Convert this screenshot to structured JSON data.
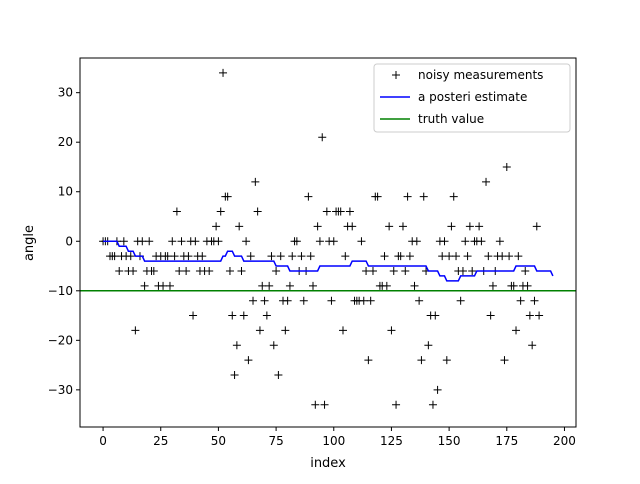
{
  "chart_data": {
    "type": "line",
    "title": "",
    "xlabel": "index",
    "ylabel": "angle",
    "xlim": [
      -10,
      205
    ],
    "ylim": [
      -37.5,
      37
    ],
    "x_ticks": [
      0,
      25,
      50,
      75,
      100,
      125,
      150,
      175,
      200
    ],
    "x_tick_labels": [
      "0",
      "25",
      "50",
      "75",
      "100",
      "125",
      "150",
      "175",
      "200"
    ],
    "y_ticks": [
      -30,
      -20,
      -10,
      0,
      10,
      20,
      30
    ],
    "y_tick_labels": [
      "−30",
      "−20",
      "−10",
      "0",
      "10",
      "20",
      "30"
    ],
    "grid": false,
    "legend_position": "top-right",
    "legend": [
      {
        "label": "noisy measurements",
        "kind": "marker",
        "color": "#000000"
      },
      {
        "label": "a posteri estimate",
        "kind": "line",
        "color": "#0000ff"
      },
      {
        "label": "truth value",
        "kind": "line",
        "color": "#008000"
      }
    ],
    "series": [
      {
        "name": "noisy measurements",
        "kind": "scatter",
        "marker": "+",
        "color": "#000000",
        "values": [
          0,
          0,
          0,
          -3,
          -3,
          -3,
          0,
          -6,
          -3,
          0,
          -3,
          -6,
          -3,
          -6,
          -18,
          0,
          -3,
          0,
          -9,
          -6,
          0,
          -6,
          -6,
          -3,
          -9,
          -3,
          -9,
          -3,
          -3,
          -9,
          0,
          -3,
          6,
          -6,
          0,
          -3,
          -6,
          -3,
          0,
          -15,
          0,
          -3,
          -6,
          -3,
          -6,
          0,
          -6,
          0,
          0,
          3,
          0,
          6,
          34,
          9,
          9,
          -6,
          -15,
          -27,
          -21,
          3,
          -6,
          -15,
          0,
          -24,
          -3,
          -12,
          12,
          6,
          -18,
          -9,
          -12,
          -15,
          -9,
          -3,
          -21,
          -6,
          -27,
          -3,
          -12,
          -18,
          -12,
          -9,
          -3,
          0,
          0,
          -6,
          -3,
          -12,
          -6,
          9,
          -3,
          -9,
          -33,
          3,
          0,
          21,
          -33,
          6,
          0,
          -12,
          0,
          6,
          6,
          6,
          -18,
          -3,
          3,
          6,
          3,
          -12,
          -12,
          -12,
          0,
          -12,
          -6,
          -24,
          -12,
          -6,
          9,
          9,
          -9,
          -9,
          -3,
          -9,
          3,
          -18,
          -6,
          -33,
          -3,
          -3,
          3,
          -6,
          9,
          -3,
          0,
          -9,
          0,
          -12,
          -24,
          9,
          -6,
          -21,
          -15,
          -33,
          -15,
          -30,
          0,
          -3,
          0,
          -24,
          -3,
          3,
          9,
          -3,
          -6,
          -12,
          -6,
          0,
          -3,
          3,
          -6,
          0,
          0,
          3,
          0,
          -6,
          12,
          -3,
          -15,
          -9,
          -6,
          -3,
          0,
          -3,
          -24,
          15,
          -3,
          -9,
          -9,
          -18,
          -3,
          -12,
          -9,
          -6,
          -9,
          -15,
          -21,
          -12,
          3,
          -15
        ]
      },
      {
        "name": "a posteri estimate",
        "kind": "line",
        "color": "#0000ff",
        "values": [
          0,
          0,
          0,
          0,
          0,
          0,
          0,
          -1,
          -1,
          -1,
          -1,
          -2,
          -2,
          -2,
          -3,
          -3,
          -3,
          -3,
          -4,
          -4,
          -4,
          -4,
          -4,
          -4,
          -4,
          -4,
          -4,
          -4,
          -4,
          -4,
          -4,
          -4,
          -4,
          -4,
          -4,
          -4,
          -4,
          -4,
          -4,
          -4,
          -4,
          -4,
          -4,
          -4,
          -4,
          -4,
          -4,
          -4,
          -4,
          -4,
          -4,
          -4,
          -3,
          -3,
          -2,
          -2,
          -2,
          -3,
          -3,
          -3,
          -3,
          -4,
          -4,
          -4,
          -4,
          -4,
          -4,
          -4,
          -4,
          -4,
          -4,
          -4,
          -4,
          -4,
          -4,
          -5,
          -5,
          -5,
          -5,
          -5,
          -5,
          -6,
          -6,
          -6,
          -6,
          -6,
          -6,
          -6,
          -6,
          -6,
          -6,
          -6,
          -6,
          -6,
          -5,
          -5,
          -5,
          -5,
          -5,
          -5,
          -5,
          -5,
          -5,
          -5,
          -5,
          -5,
          -5,
          -5,
          -4,
          -4,
          -4,
          -4,
          -4,
          -4,
          -4,
          -5,
          -5,
          -5,
          -5,
          -5,
          -5,
          -5,
          -5,
          -5,
          -5,
          -5,
          -5,
          -5,
          -5,
          -5,
          -5,
          -5,
          -5,
          -5,
          -5,
          -5,
          -5,
          -5,
          -5,
          -5,
          -5,
          -6,
          -6,
          -6,
          -6,
          -6,
          -7,
          -7,
          -7,
          -8,
          -8,
          -8,
          -8,
          -8,
          -8,
          -7,
          -7,
          -7,
          -7,
          -7,
          -7,
          -7,
          -6,
          -6,
          -6,
          -6,
          -6,
          -6,
          -6,
          -6,
          -6,
          -6,
          -6,
          -6,
          -6,
          -6,
          -6,
          -6,
          -6,
          -5,
          -5,
          -5,
          -5,
          -5,
          -5,
          -5,
          -5,
          -5,
          -6,
          -6,
          -6,
          -6,
          -6,
          -6,
          -6,
          -7
        ]
      },
      {
        "name": "truth value",
        "kind": "hline",
        "color": "#008000",
        "y": -10
      }
    ]
  }
}
